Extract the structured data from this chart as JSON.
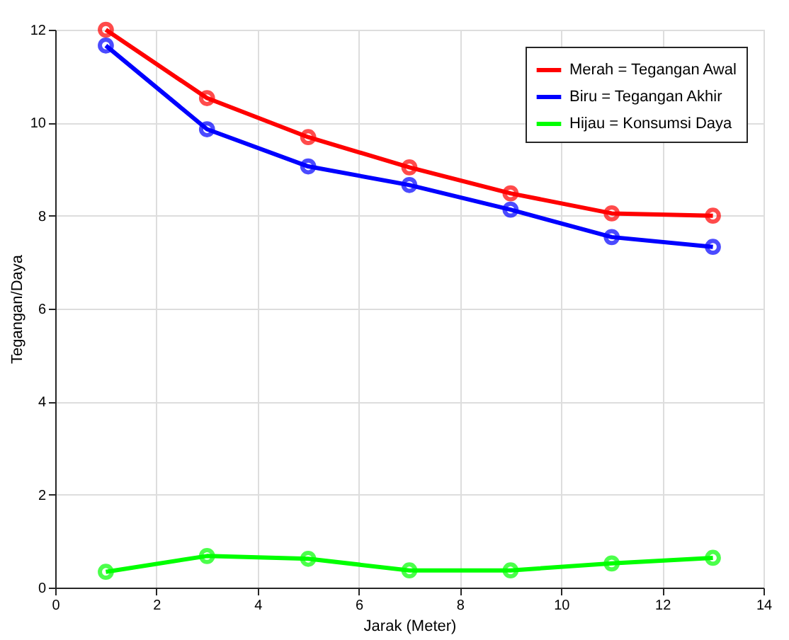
{
  "chart_data": {
    "type": "line",
    "xlabel": "Jarak (Meter)",
    "ylabel": "Tegangan/Daya",
    "x": [
      1,
      3,
      5,
      7,
      9,
      11,
      13
    ],
    "series": [
      {
        "name": "Merah = Tegangan Awal",
        "color": "#ff0000",
        "values": [
          12.0,
          10.53,
          9.69,
          9.04,
          8.48,
          8.05,
          8.0
        ]
      },
      {
        "name": "Biru = Tegangan Akhir",
        "color": "#0000ff",
        "values": [
          11.66,
          9.86,
          9.06,
          8.66,
          8.13,
          7.54,
          7.33
        ]
      },
      {
        "name": "Hijau = Konsumsi Daya",
        "color": "#00ff00",
        "values": [
          0.34,
          0.68,
          0.62,
          0.37,
          0.37,
          0.52,
          0.64
        ]
      }
    ],
    "xlim": [
      0,
      14
    ],
    "xticks": [
      0,
      2,
      4,
      6,
      8,
      10,
      12,
      14
    ],
    "ylim": [
      0,
      12
    ],
    "yticks": [
      0,
      2,
      4,
      6,
      8,
      10,
      12
    ],
    "grid": true,
    "legend": "top right",
    "marker": "circle",
    "line_style": "solid"
  }
}
